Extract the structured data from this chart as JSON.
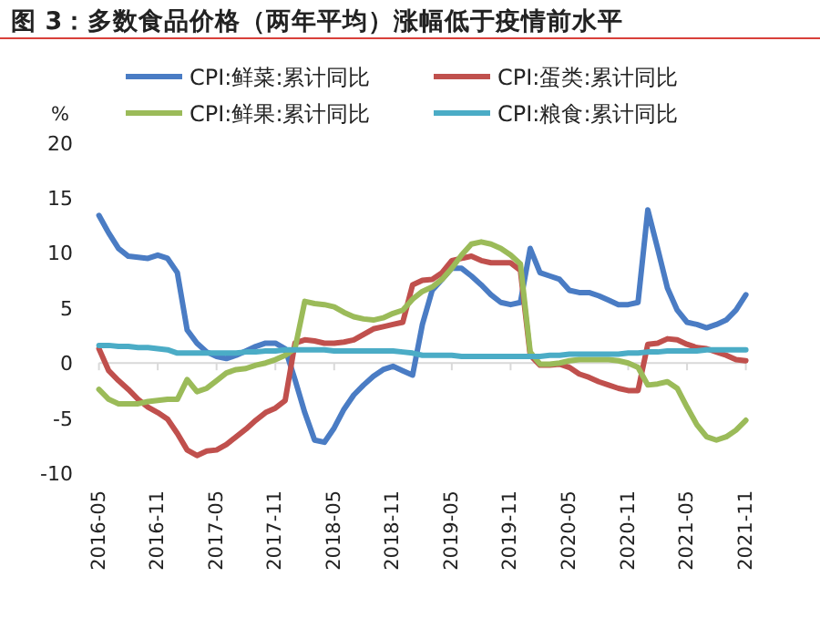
{
  "chart_data": {
    "type": "line",
    "title": "图 3：多数食品价格（两年平均）涨幅低于疫情前水平",
    "ylabel": "%",
    "x": [
      "2016-05",
      "2016-06",
      "2016-07",
      "2016-08",
      "2016-09",
      "2016-10",
      "2016-11",
      "2016-12",
      "2017-01",
      "2017-02",
      "2017-03",
      "2017-04",
      "2017-05",
      "2017-06",
      "2017-07",
      "2017-08",
      "2017-09",
      "2017-10",
      "2017-11",
      "2017-12",
      "2018-01",
      "2018-02",
      "2018-03",
      "2018-04",
      "2018-05",
      "2018-06",
      "2018-07",
      "2018-08",
      "2018-09",
      "2018-10",
      "2018-11",
      "2018-12",
      "2019-01",
      "2019-02",
      "2019-03",
      "2019-04",
      "2019-05",
      "2019-06",
      "2019-07",
      "2019-08",
      "2019-09",
      "2019-10",
      "2019-11",
      "2019-12",
      "2020-01",
      "2020-02",
      "2020-03",
      "2020-04",
      "2020-05",
      "2020-06",
      "2020-07",
      "2020-08",
      "2020-09",
      "2020-10",
      "2020-11",
      "2020-12",
      "2021-01",
      "2021-02",
      "2021-03",
      "2021-04",
      "2021-05",
      "2021-06",
      "2021-07",
      "2021-08",
      "2021-09",
      "2021-10",
      "2021-11"
    ],
    "series": [
      {
        "name": "CPI:鲜菜:累计同比",
        "color": "#4a7cc4",
        "values": [
          13.4,
          11.8,
          10.4,
          9.7,
          9.6,
          9.5,
          9.8,
          9.5,
          8.2,
          3.0,
          1.8,
          1.0,
          0.6,
          0.4,
          0.7,
          1.1,
          1.5,
          1.8,
          1.8,
          1.3,
          -1.5,
          -4.5,
          -7.0,
          -7.2,
          -5.9,
          -4.2,
          -2.9,
          -2.0,
          -1.2,
          -0.6,
          -0.3,
          -0.7,
          -1.1,
          3.5,
          6.6,
          7.6,
          8.6,
          8.6,
          7.9,
          7.1,
          6.2,
          5.5,
          5.3,
          5.5,
          10.4,
          8.2,
          7.9,
          7.6,
          6.6,
          6.4,
          6.4,
          6.1,
          5.7,
          5.3,
          5.3,
          5.5,
          13.9,
          10.4,
          6.8,
          4.8,
          3.7,
          3.5,
          3.2,
          3.5,
          3.9,
          4.8,
          6.2
        ]
      },
      {
        "name": "CPI:蛋类:累计同比",
        "color": "#c0504d",
        "values": [
          1.3,
          -0.7,
          -1.6,
          -2.4,
          -3.3,
          -4.0,
          -4.5,
          -5.1,
          -6.4,
          -7.9,
          -8.4,
          -8.0,
          -7.9,
          -7.4,
          -6.7,
          -6.0,
          -5.2,
          -4.5,
          -4.1,
          -3.4,
          1.8,
          2.1,
          2.0,
          1.8,
          1.8,
          1.9,
          2.1,
          2.6,
          3.1,
          3.3,
          3.5,
          3.7,
          7.1,
          7.5,
          7.6,
          8.2,
          9.3,
          9.5,
          9.7,
          9.3,
          9.1,
          9.1,
          9.1,
          8.4,
          0.7,
          -0.2,
          -0.2,
          -0.1,
          -0.4,
          -1.0,
          -1.3,
          -1.7,
          -2.0,
          -2.3,
          -2.5,
          -2.5,
          1.7,
          1.8,
          2.2,
          2.1,
          1.7,
          1.4,
          1.3,
          1.0,
          0.7,
          0.3,
          0.2
        ]
      },
      {
        "name": "CPI:鲜果:累计同比",
        "color": "#9bbb59",
        "values": [
          -2.4,
          -3.3,
          -3.7,
          -3.7,
          -3.7,
          -3.5,
          -3.4,
          -3.3,
          -3.3,
          -1.5,
          -2.6,
          -2.3,
          -1.6,
          -0.9,
          -0.6,
          -0.5,
          -0.2,
          0.0,
          0.3,
          0.7,
          1.3,
          5.6,
          5.4,
          5.3,
          5.1,
          4.6,
          4.2,
          4.0,
          3.9,
          4.1,
          4.5,
          4.8,
          5.8,
          6.5,
          6.9,
          7.6,
          8.6,
          9.8,
          10.8,
          11.0,
          10.8,
          10.4,
          9.8,
          9.0,
          1.0,
          -0.1,
          -0.1,
          0.0,
          0.2,
          0.3,
          0.3,
          0.3,
          0.3,
          0.2,
          0.0,
          -0.4,
          -2.0,
          -1.9,
          -1.7,
          -2.3,
          -4.0,
          -5.6,
          -6.7,
          -7.0,
          -6.7,
          -6.1,
          -5.2
        ]
      },
      {
        "name": "CPI:粮食:累计同比",
        "color": "#4bacc6",
        "values": [
          1.6,
          1.6,
          1.5,
          1.5,
          1.4,
          1.4,
          1.3,
          1.2,
          0.9,
          0.9,
          0.9,
          0.9,
          0.9,
          0.9,
          0.9,
          1.0,
          1.0,
          1.1,
          1.1,
          1.2,
          1.2,
          1.2,
          1.2,
          1.2,
          1.1,
          1.1,
          1.1,
          1.1,
          1.1,
          1.1,
          1.1,
          1.0,
          0.9,
          0.7,
          0.7,
          0.7,
          0.7,
          0.6,
          0.6,
          0.6,
          0.6,
          0.6,
          0.6,
          0.6,
          0.6,
          0.6,
          0.7,
          0.7,
          0.8,
          0.8,
          0.8,
          0.8,
          0.8,
          0.8,
          0.9,
          0.9,
          1.0,
          1.0,
          1.1,
          1.1,
          1.1,
          1.1,
          1.2,
          1.2,
          1.2,
          1.2,
          1.2
        ]
      }
    ],
    "xlim": [
      "2016-05",
      "2021-11"
    ],
    "xticks": [
      "2016-05",
      "2016-11",
      "2017-05",
      "2017-11",
      "2018-05",
      "2018-11",
      "2019-05",
      "2019-11",
      "2020-05",
      "2020-11",
      "2021-05",
      "2021-11"
    ],
    "ylim": [
      -10,
      20
    ],
    "yticks": [
      -10,
      -5,
      0,
      5,
      10,
      15,
      20
    ],
    "legend": "top",
    "marker": "none",
    "line_style": "solid"
  }
}
